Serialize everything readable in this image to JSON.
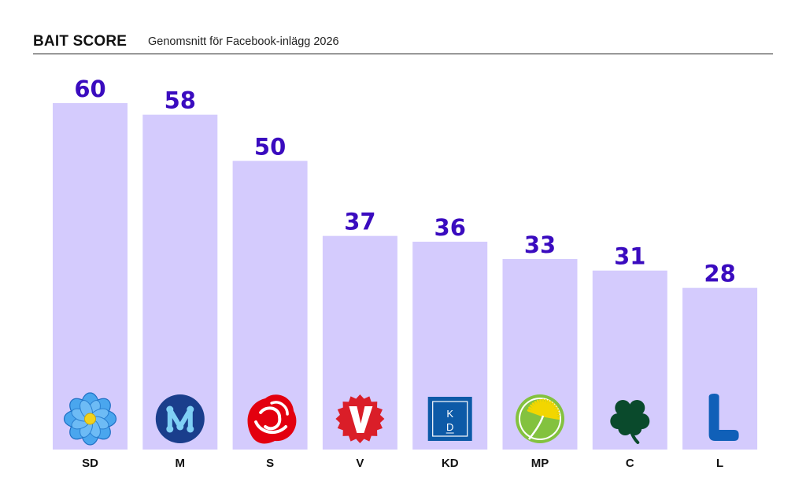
{
  "header": {
    "title": "BAIT SCORE",
    "subtitle": "Genomsnitt för Facebook-inlägg 2026"
  },
  "colors": {
    "bar": "#d4cbfd",
    "value_label": "#3a0bbf",
    "category_label": "#111111"
  },
  "chart_data": {
    "type": "bar",
    "title": "BAIT SCORE",
    "subtitle": "Genomsnitt för Facebook-inlägg 2026",
    "categories": [
      "SD",
      "M",
      "S",
      "V",
      "KD",
      "MP",
      "C",
      "L"
    ],
    "values": [
      60,
      58,
      50,
      37,
      36,
      33,
      31,
      28
    ],
    "icons": [
      "sd-flower-icon",
      "m-logo-icon",
      "s-rose-icon",
      "v-logo-icon",
      "kd-logo-icon",
      "mp-dandelion-icon",
      "c-clover-icon",
      "l-logo-icon"
    ],
    "xlabel": "",
    "ylabel": "",
    "ylim": [
      0,
      60
    ],
    "grid": false,
    "legend": "none"
  }
}
